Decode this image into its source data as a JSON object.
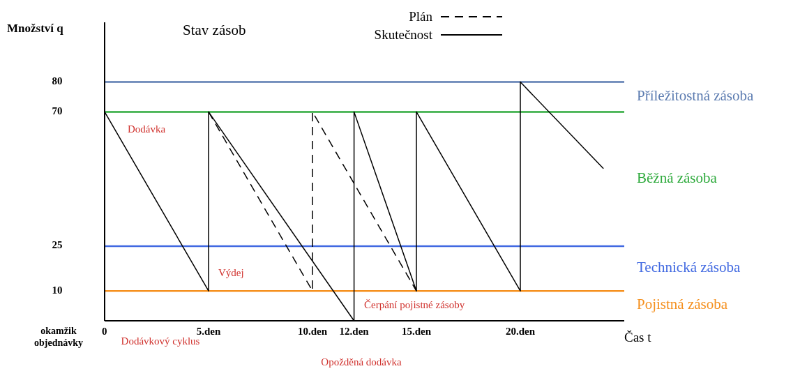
{
  "chart_data": {
    "type": "line",
    "title": "Stav zásob",
    "xlabel": "Čas t",
    "ylabel": "Množství q",
    "xlim": [
      0,
      25
    ],
    "ylim": [
      0,
      100
    ],
    "xticks": [
      {
        "value": 0,
        "label": "0"
      },
      {
        "value": 5,
        "label": "5.den"
      },
      {
        "value": 10,
        "label": "10.den"
      },
      {
        "value": 12,
        "label": "12.den"
      },
      {
        "value": 15,
        "label": "15.den"
      },
      {
        "value": 20,
        "label": "20.den"
      }
    ],
    "yticks": [
      10,
      25,
      70,
      80
    ],
    "series": [
      {
        "name": "Plán",
        "color": "#000000",
        "line_style": "dashed",
        "x": [
          5,
          10,
          10,
          15
        ],
        "values": [
          70,
          10,
          70,
          10
        ]
      },
      {
        "name": "Skutečnost",
        "color": "#000000",
        "line_style": "solid",
        "x": [
          0,
          5,
          5,
          12,
          12,
          15,
          15,
          20,
          20,
          24
        ],
        "values": [
          70,
          10,
          70,
          0,
          70,
          10,
          70,
          10,
          80,
          51
        ]
      }
    ],
    "ref_lines": [
      {
        "axis": "y",
        "value": 80,
        "label": "Příležitostná zásoba",
        "color": "#5b7bb0"
      },
      {
        "axis": "y",
        "value": 70,
        "label": "Běžná zásoba",
        "color": "#2eaa3c"
      },
      {
        "axis": "y",
        "value": 25,
        "label": "Technická zásoba",
        "color": "#4169e1"
      },
      {
        "axis": "y",
        "value": 10,
        "label": "Pojistná zásoba",
        "color": "#f5901e"
      }
    ],
    "annotations": [
      "Dodávka",
      "Výdej",
      "Čerpání pojistné zásoby",
      "okamžik objednávky",
      "Dodávkový cyklus",
      "Opožděná dodávka"
    ],
    "legend": "top"
  }
}
